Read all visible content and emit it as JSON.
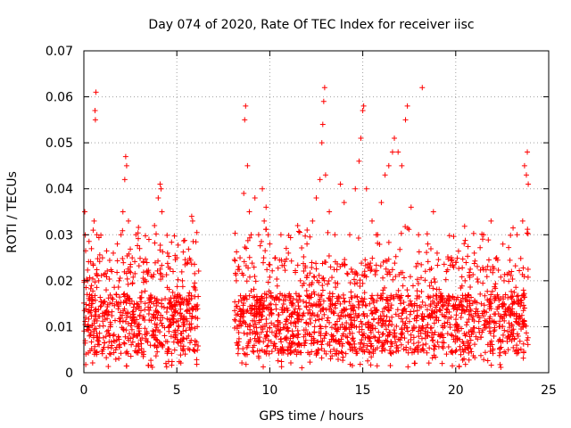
{
  "chart_data": {
    "type": "scatter",
    "title": "Day 074 of 2020, Rate Of TEC Index for receiver iisc",
    "xlabel": "GPS time / hours",
    "ylabel": "ROTI / TECUs",
    "xlim": [
      0,
      25
    ],
    "ylim": [
      0,
      0.07
    ],
    "x_ticks": [
      0,
      5,
      10,
      15,
      20,
      25
    ],
    "y_ticks": [
      0,
      0.01,
      0.02,
      0.03,
      0.04,
      0.05,
      0.06,
      0.07
    ],
    "x_tick_labels": [
      "0",
      "5",
      "10",
      "15",
      "20",
      "25"
    ],
    "y_tick_labels": [
      "0",
      "0.01",
      "0.02",
      "0.03",
      "0.04",
      "0.05",
      "0.06",
      "0.07"
    ],
    "grid": true,
    "marker": "plus",
    "color": "#ff0000",
    "data_gap_hours": [
      6.2,
      8.1
    ],
    "points": [
      [
        0.05,
        0.035
      ],
      [
        0.1,
        0.012
      ],
      [
        0.2,
        0.02
      ],
      [
        0.3,
        0.008
      ],
      [
        0.4,
        0.015
      ],
      [
        0.5,
        0.031
      ],
      [
        0.55,
        0.033
      ],
      [
        0.6,
        0.057
      ],
      [
        0.62,
        0.055
      ],
      [
        0.65,
        0.061
      ],
      [
        0.7,
        0.03
      ],
      [
        0.8,
        0.02
      ],
      [
        1.0,
        0.025
      ],
      [
        1.2,
        0.018
      ],
      [
        1.5,
        0.022
      ],
      [
        1.8,
        0.028
      ],
      [
        2.0,
        0.03
      ],
      [
        2.1,
        0.035
      ],
      [
        2.2,
        0.042
      ],
      [
        2.25,
        0.047
      ],
      [
        2.3,
        0.045
      ],
      [
        2.4,
        0.033
      ],
      [
        2.6,
        0.025
      ],
      [
        2.8,
        0.03
      ],
      [
        3.0,
        0.027
      ],
      [
        3.2,
        0.024
      ],
      [
        3.5,
        0.029
      ],
      [
        3.8,
        0.032
      ],
      [
        4.0,
        0.038
      ],
      [
        4.1,
        0.041
      ],
      [
        4.15,
        0.04
      ],
      [
        4.2,
        0.035
      ],
      [
        4.5,
        0.026
      ],
      [
        4.8,
        0.022
      ],
      [
        5.0,
        0.025
      ],
      [
        5.3,
        0.02
      ],
      [
        5.6,
        0.024
      ],
      [
        5.8,
        0.034
      ],
      [
        5.85,
        0.033
      ],
      [
        6.0,
        0.018
      ],
      [
        6.1,
        0.01
      ],
      [
        8.2,
        0.02
      ],
      [
        8.4,
        0.025
      ],
      [
        8.6,
        0.039
      ],
      [
        8.65,
        0.055
      ],
      [
        8.7,
        0.058
      ],
      [
        8.8,
        0.045
      ],
      [
        8.9,
        0.035
      ],
      [
        9.0,
        0.03
      ],
      [
        9.2,
        0.038
      ],
      [
        9.4,
        0.03
      ],
      [
        9.6,
        0.04
      ],
      [
        9.7,
        0.033
      ],
      [
        9.8,
        0.036
      ],
      [
        10.0,
        0.028
      ],
      [
        10.3,
        0.025
      ],
      [
        10.6,
        0.03
      ],
      [
        11.0,
        0.026
      ],
      [
        11.5,
        0.032
      ],
      [
        12.0,
        0.028
      ],
      [
        12.3,
        0.033
      ],
      [
        12.5,
        0.038
      ],
      [
        12.7,
        0.042
      ],
      [
        12.8,
        0.05
      ],
      [
        12.85,
        0.054
      ],
      [
        12.9,
        0.059
      ],
      [
        12.95,
        0.062
      ],
      [
        13.0,
        0.043
      ],
      [
        13.2,
        0.035
      ],
      [
        13.5,
        0.03
      ],
      [
        13.8,
        0.041
      ],
      [
        14.0,
        0.037
      ],
      [
        14.3,
        0.03
      ],
      [
        14.6,
        0.04
      ],
      [
        14.8,
        0.046
      ],
      [
        14.9,
        0.051
      ],
      [
        15.0,
        0.057
      ],
      [
        15.05,
        0.058
      ],
      [
        15.2,
        0.04
      ],
      [
        15.5,
        0.033
      ],
      [
        15.8,
        0.03
      ],
      [
        16.0,
        0.037
      ],
      [
        16.2,
        0.043
      ],
      [
        16.4,
        0.045
      ],
      [
        16.6,
        0.048
      ],
      [
        16.7,
        0.051
      ],
      [
        16.9,
        0.048
      ],
      [
        17.1,
        0.045
      ],
      [
        17.3,
        0.055
      ],
      [
        17.4,
        0.058
      ],
      [
        17.6,
        0.036
      ],
      [
        18.0,
        0.03
      ],
      [
        18.2,
        0.062
      ],
      [
        18.5,
        0.028
      ],
      [
        18.8,
        0.035
      ],
      [
        19.0,
        0.026
      ],
      [
        19.5,
        0.022
      ],
      [
        20.0,
        0.024
      ],
      [
        20.5,
        0.02
      ],
      [
        21.0,
        0.026
      ],
      [
        21.5,
        0.03
      ],
      [
        21.9,
        0.033
      ],
      [
        22.2,
        0.025
      ],
      [
        22.6,
        0.02
      ],
      [
        23.0,
        0.022
      ],
      [
        23.3,
        0.03
      ],
      [
        23.6,
        0.033
      ],
      [
        23.7,
        0.045
      ],
      [
        23.8,
        0.043
      ],
      [
        23.85,
        0.048
      ],
      [
        23.9,
        0.041
      ]
    ]
  }
}
